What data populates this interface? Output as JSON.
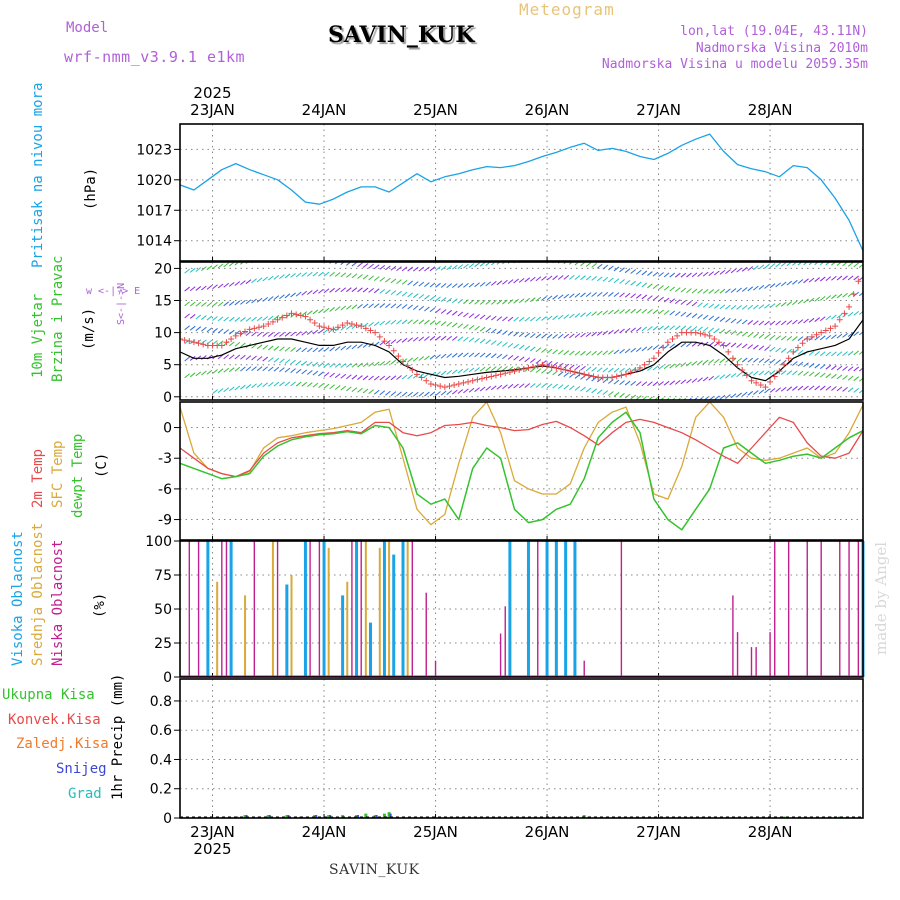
{
  "header": {
    "model_label": "Model",
    "model_name": "wrf-nmm_v3.9.1  e1km",
    "station": "SAVIN_KUK",
    "meteogram": "Meteogram",
    "lonlat": "lon,lat (19.04E, 43.11N)",
    "elev": "Nadmorska Visina 2010m",
    "elev_model": "Nadmorska Visina u modelu 2059.35m",
    "watermark": "made by Angel",
    "footer_station": "SAVIN_KUK"
  },
  "colors": {
    "pressure": "#1aa3e6",
    "temp2m": "#e84a4a",
    "sfc": "#d9a93a",
    "dewpt": "#35c22f",
    "high": "#1aa3e6",
    "mid": "#d9a93a",
    "low": "#c0208f",
    "wind_speed": "#000000",
    "wind_gust": "#e84a4a",
    "snow": "#3a48d6",
    "grad": "#22bdbd"
  },
  "x_axis": {
    "year_top": "2025",
    "year_bottom": "2025",
    "dates": [
      "23JAN",
      "24JAN",
      "25JAN",
      "26JAN",
      "27JAN",
      "28JAN"
    ],
    "x_range_hours": [
      -7,
      140
    ]
  },
  "panels": {
    "pressure": {
      "label": "Pritisak na nivou mora",
      "unit": "(hPa)",
      "ticks": [
        "1023",
        "1020",
        "1017",
        "1014"
      ]
    },
    "wind": {
      "label1": "10m Vjetar",
      "label2": "Brzina i Pravac",
      "unit": "(m/s)",
      "ticks": [
        "20",
        "15",
        "10",
        "5",
        "0"
      ],
      "compass": "w <-|-> E",
      "compass_ns": "S<-|->N"
    },
    "temp": {
      "label_2m": "2m Temp",
      "label_sfc": "SFC Temp",
      "label_dew": "dewpt Temp",
      "unit": "(C)",
      "ticks": [
        "0",
        "-3",
        "-6",
        "-9"
      ]
    },
    "cloud": {
      "label_high": "Visoka Oblacnost",
      "label_mid": "Srednja Oblacnost",
      "label_low": "Niska Oblacnost",
      "unit": "(%)",
      "ticks": [
        "100",
        "75",
        "50",
        "25",
        "0"
      ]
    },
    "precip": {
      "label_total": "Ukupna Kisa",
      "label_conv": "Konvek.Kisa",
      "label_frz": "Zaledj.Kisa",
      "label_snow": "Snijeg",
      "label_grad": "Grad",
      "unit": "1hr Precip (mm)",
      "ticks": [
        "0.8",
        "0.6",
        "0.4",
        "0.2",
        "0"
      ]
    }
  },
  "chart_data": [
    {
      "type": "line",
      "title": "Pritisak na nivou mora",
      "ylabel": "(hPa)",
      "ylim": [
        1012,
        1025.5
      ],
      "x_hours": [
        -7,
        -4,
        -1,
        2,
        5,
        8,
        11,
        14,
        17,
        20,
        23,
        26,
        29,
        32,
        35,
        38,
        41,
        44,
        47,
        50,
        53,
        56,
        59,
        62,
        65,
        68,
        71,
        74,
        77,
        80,
        83,
        86,
        89,
        92,
        95,
        98,
        101,
        104,
        107,
        110,
        113,
        116,
        119,
        122,
        125,
        128,
        131,
        134,
        137,
        140
      ],
      "series": [
        {
          "name": "pressure",
          "values": [
            1019.5,
            1019.0,
            1020.0,
            1021.0,
            1021.6,
            1021.0,
            1020.5,
            1020.0,
            1019.0,
            1017.8,
            1017.6,
            1018.1,
            1018.8,
            1019.3,
            1019.3,
            1018.8,
            1019.7,
            1020.6,
            1019.8,
            1020.3,
            1020.6,
            1021.0,
            1021.3,
            1021.2,
            1021.4,
            1021.8,
            1022.3,
            1022.7,
            1023.2,
            1023.6,
            1022.9,
            1023.1,
            1022.8,
            1022.3,
            1022.0,
            1022.6,
            1023.4,
            1024.0,
            1024.5,
            1022.8,
            1021.5,
            1021.1,
            1020.8,
            1020.3,
            1021.4,
            1021.2,
            1020.0,
            1018.2,
            1016.0,
            1013.0
          ]
        }
      ]
    },
    {
      "type": "line",
      "title": "10m Vjetar Brzina i Pravac",
      "ylabel": "(m/s)",
      "ylim": [
        -0.5,
        21
      ],
      "x_hours": [
        -7,
        -4,
        -1,
        2,
        5,
        8,
        11,
        14,
        17,
        20,
        23,
        26,
        29,
        32,
        35,
        38,
        41,
        44,
        47,
        50,
        53,
        56,
        59,
        62,
        65,
        68,
        71,
        74,
        77,
        80,
        83,
        86,
        89,
        92,
        95,
        98,
        101,
        104,
        107,
        110,
        113,
        116,
        119,
        122,
        125,
        128,
        131,
        134,
        137,
        140
      ],
      "series": [
        {
          "name": "speed",
          "values": [
            7,
            6,
            6,
            6.5,
            7.5,
            8,
            8.5,
            9,
            9,
            8.5,
            8,
            8,
            8.5,
            8.5,
            8,
            7,
            5,
            4,
            3.5,
            3,
            3.2,
            3.5,
            3.8,
            4,
            4.2,
            4.5,
            4.8,
            4.5,
            4,
            3.5,
            3,
            3,
            3.5,
            4,
            5,
            7,
            8.5,
            8.5,
            8,
            6.5,
            4.5,
            3,
            2.5,
            4,
            6,
            7,
            7.5,
            8,
            9,
            12
          ]
        },
        {
          "name": "gust",
          "values": [
            9,
            8.5,
            8,
            8,
            9.5,
            10.5,
            11,
            12,
            13,
            12.5,
            11,
            10.5,
            11.5,
            11,
            10,
            8,
            5.5,
            3.5,
            2,
            1.5,
            2,
            2.5,
            3,
            3.5,
            4,
            4.5,
            5,
            4.5,
            4,
            3.5,
            3,
            3,
            3.5,
            4.5,
            6,
            8.5,
            10,
            10,
            9.5,
            8,
            5,
            2.5,
            1.5,
            4,
            7,
            9,
            10,
            11,
            14,
            20
          ]
        }
      ]
    },
    {
      "type": "line",
      "title": "2m Temp / SFC Temp / dewpt Temp",
      "ylabel": "(C)",
      "ylim": [
        -11,
        2.5
      ],
      "x_hours": [
        -7,
        -4,
        -1,
        2,
        5,
        8,
        11,
        14,
        17,
        20,
        23,
        26,
        29,
        32,
        35,
        38,
        41,
        44,
        47,
        50,
        53,
        56,
        59,
        62,
        65,
        68,
        71,
        74,
        77,
        80,
        83,
        86,
        89,
        92,
        95,
        98,
        101,
        104,
        107,
        110,
        113,
        116,
        119,
        122,
        125,
        128,
        131,
        134,
        137,
        140
      ],
      "series": [
        {
          "name": "2m Temp",
          "values": [
            -2,
            -3,
            -4,
            -4.5,
            -4.8,
            -4.2,
            -2.5,
            -1.5,
            -1,
            -0.8,
            -0.6,
            -0.5,
            -0.3,
            -0.5,
            0.5,
            0.5,
            -0.5,
            -0.8,
            -0.5,
            0.2,
            0.3,
            0.5,
            0.2,
            0,
            -0.3,
            -0.2,
            0.3,
            0.6,
            0,
            -0.8,
            -1.7,
            -0.5,
            0.5,
            0.8,
            0.5,
            0,
            -0.5,
            -1.2,
            -2,
            -2.8,
            -3.5,
            -2,
            -0.5,
            1,
            0.5,
            -1.5,
            -2.8,
            -3,
            -2.5,
            -0.3
          ]
        },
        {
          "name": "SFC Temp",
          "values": [
            2,
            -2.5,
            -4,
            -4.5,
            -4.8,
            -4.3,
            -2,
            -1,
            -0.8,
            -0.5,
            -0.3,
            -0.1,
            0.2,
            0.5,
            1.5,
            1.8,
            -3,
            -8,
            -9.5,
            -8.5,
            -3.5,
            1,
            2.5,
            -0.5,
            -5.2,
            -6,
            -6.5,
            -6.5,
            -5.5,
            -2,
            0.5,
            1.5,
            2,
            -1.5,
            -6.5,
            -7,
            -3.8,
            1,
            2.5,
            1,
            -2,
            -3,
            -3.2,
            -3,
            -2.5,
            -2,
            -3,
            -2.5,
            -0.5,
            2.2
          ]
        },
        {
          "name": "dewpt Temp",
          "values": [
            -3.5,
            -4,
            -4.5,
            -5,
            -4.8,
            -4.5,
            -2.8,
            -1.8,
            -1.2,
            -0.9,
            -0.7,
            -0.6,
            -0.4,
            -0.6,
            0.2,
            0,
            -2,
            -6.5,
            -7.5,
            -7,
            -9,
            -4,
            -2,
            -3,
            -8,
            -9.3,
            -9,
            -8,
            -7.5,
            -5,
            -1,
            0.5,
            1.5,
            -0.5,
            -7,
            -9,
            -10,
            -8,
            -6,
            -2,
            -1.5,
            -2.5,
            -3.5,
            -3.2,
            -2.8,
            -2.6,
            -3,
            -2,
            -1,
            -0.3
          ]
        }
      ]
    },
    {
      "type": "bar",
      "title": "Visoka / Srednja / Niska Oblacnost",
      "ylabel": "(%)",
      "ylim": [
        0,
        100
      ],
      "bars_high": [
        [
          -1,
          100
        ],
        [
          4,
          100
        ],
        [
          16,
          68
        ],
        [
          20,
          100
        ],
        [
          24,
          100
        ],
        [
          28,
          60
        ],
        [
          31,
          100
        ],
        [
          34,
          40
        ],
        [
          37,
          100
        ],
        [
          39,
          90
        ],
        [
          41,
          100
        ],
        [
          64,
          100
        ],
        [
          68,
          100
        ],
        [
          72,
          100
        ],
        [
          74,
          100
        ],
        [
          76,
          100
        ],
        [
          78,
          100
        ],
        [
          140,
          100
        ]
      ],
      "bars_mid": [
        [
          1,
          70
        ],
        [
          7,
          60
        ],
        [
          13,
          100
        ],
        [
          17,
          75
        ],
        [
          25,
          95
        ],
        [
          29,
          70
        ],
        [
          33,
          100
        ],
        [
          36,
          95
        ],
        [
          38,
          100
        ],
        [
          42,
          100
        ]
      ],
      "bars_low": [
        [
          -5,
          100
        ],
        [
          -3,
          100
        ],
        [
          2,
          100
        ],
        [
          3,
          100
        ],
        [
          9,
          100
        ],
        [
          14,
          100
        ],
        [
          21,
          100
        ],
        [
          23,
          100
        ],
        [
          30,
          100
        ],
        [
          32,
          100
        ],
        [
          43,
          100
        ],
        [
          46,
          62
        ],
        [
          48,
          12
        ],
        [
          62,
          32
        ],
        [
          63,
          52
        ],
        [
          70,
          100
        ],
        [
          80,
          12
        ],
        [
          88,
          100
        ],
        [
          112,
          60
        ],
        [
          113,
          33
        ],
        [
          116,
          22
        ],
        [
          117,
          22
        ],
        [
          120,
          33
        ],
        [
          121,
          100
        ],
        [
          124,
          100
        ],
        [
          128,
          100
        ],
        [
          131,
          100
        ],
        [
          135,
          100
        ],
        [
          137,
          100
        ],
        [
          139,
          100
        ]
      ]
    },
    {
      "type": "bar",
      "title": "1hr Precip",
      "ylabel": "1hr Precip (mm)",
      "ylim": [
        0,
        0.95
      ],
      "bars_total": [
        [
          5,
          0.01
        ],
        [
          7,
          0.02
        ],
        [
          10,
          0.01
        ],
        [
          12,
          0.02
        ],
        [
          16,
          0.02
        ],
        [
          19,
          0.01
        ],
        [
          22,
          0.02
        ],
        [
          25,
          0.02
        ],
        [
          28,
          0.02
        ],
        [
          31,
          0.02
        ],
        [
          33,
          0.03
        ],
        [
          35,
          0.02
        ],
        [
          37,
          0.03
        ],
        [
          38,
          0.04
        ],
        [
          80,
          0.02
        ],
        [
          81,
          0.01
        ],
        [
          123,
          0.01
        ],
        [
          133,
          0.01
        ],
        [
          135,
          0.01
        ]
      ],
      "bars_snow": [
        [
          5,
          0.01
        ],
        [
          7,
          0.02
        ],
        [
          12,
          0.02
        ],
        [
          16,
          0.02
        ],
        [
          22,
          0.02
        ],
        [
          25,
          0.02
        ],
        [
          31,
          0.02
        ],
        [
          35,
          0.02
        ],
        [
          38,
          0.03
        ]
      ]
    }
  ]
}
